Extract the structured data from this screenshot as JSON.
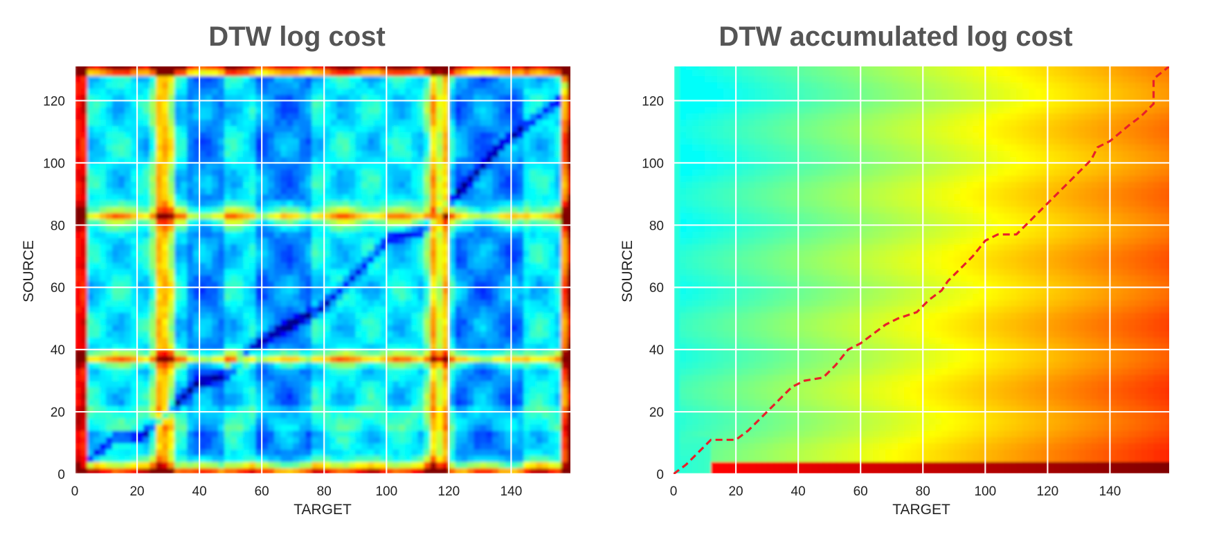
{
  "chart_data": [
    {
      "type": "heatmap",
      "title": "DTW log cost",
      "xlabel": "TARGET",
      "ylabel": "SOURCE",
      "xlim": [
        0,
        159
      ],
      "ylim": [
        0,
        131
      ],
      "xticks": [
        0,
        20,
        40,
        60,
        80,
        100,
        120,
        140
      ],
      "yticks": [
        0,
        20,
        40,
        60,
        80,
        100,
        120
      ],
      "colormap": "jet",
      "grid": true,
      "alignment_path_visible_as_low_cost_diagonal": [
        [
          0,
          0
        ],
        [
          12,
          11
        ],
        [
          20,
          11
        ],
        [
          28,
          18
        ],
        [
          38,
          28
        ],
        [
          48,
          31
        ],
        [
          56,
          40
        ],
        [
          66,
          46
        ],
        [
          78,
          52
        ],
        [
          88,
          62
        ],
        [
          100,
          75
        ],
        [
          110,
          77
        ],
        [
          120,
          87
        ],
        [
          136,
          105
        ],
        [
          154,
          119
        ],
        [
          159,
          131
        ]
      ]
    },
    {
      "type": "heatmap",
      "title": "DTW accumulated log cost",
      "xlabel": "TARGET",
      "ylabel": "SOURCE",
      "xlim": [
        0,
        159
      ],
      "ylim": [
        0,
        131
      ],
      "xticks": [
        0,
        20,
        40,
        60,
        80,
        100,
        120,
        140
      ],
      "yticks": [
        0,
        20,
        40,
        60,
        80,
        100,
        120
      ],
      "colormap": "jet-to-red",
      "grid": true,
      "series": [
        {
          "style": "dashed",
          "color": "#e8202a",
          "points": [
            [
              0,
              0
            ],
            [
              4,
              3
            ],
            [
              8,
              7
            ],
            [
              12,
              11
            ],
            [
              20,
              11
            ],
            [
              24,
              14
            ],
            [
              28,
              18
            ],
            [
              32,
              22
            ],
            [
              38,
              28
            ],
            [
              42,
              30
            ],
            [
              48,
              31
            ],
            [
              52,
              35
            ],
            [
              56,
              40
            ],
            [
              60,
              42
            ],
            [
              64,
              45
            ],
            [
              68,
              48
            ],
            [
              72,
              50
            ],
            [
              78,
              52
            ],
            [
              82,
              56
            ],
            [
              86,
              59
            ],
            [
              88,
              62
            ],
            [
              92,
              66
            ],
            [
              96,
              70
            ],
            [
              100,
              75
            ],
            [
              104,
              77
            ],
            [
              110,
              77
            ],
            [
              114,
              81
            ],
            [
              118,
              85
            ],
            [
              122,
              89
            ],
            [
              126,
              93
            ],
            [
              130,
              97
            ],
            [
              134,
              101
            ],
            [
              136,
              105
            ],
            [
              140,
              107
            ],
            [
              146,
              112
            ],
            [
              150,
              115
            ],
            [
              154,
              119
            ],
            [
              154,
              127
            ],
            [
              159,
              131
            ]
          ]
        }
      ]
    }
  ]
}
